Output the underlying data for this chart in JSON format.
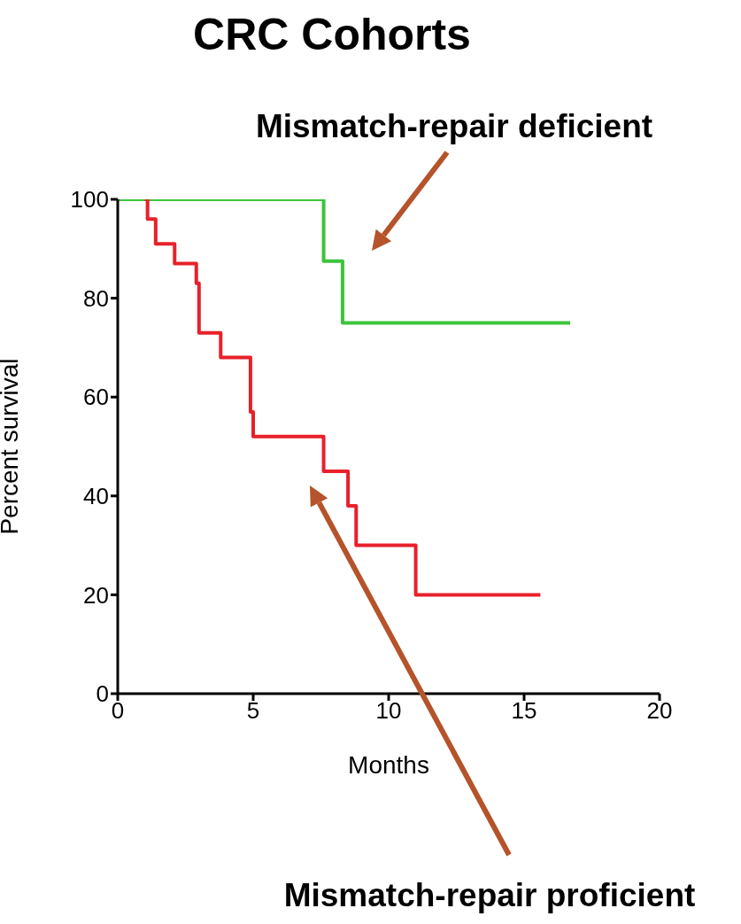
{
  "chart_data": {
    "type": "step",
    "title": "CRC Cohorts",
    "xlabel": "Months",
    "ylabel": "Percent survival",
    "xlim": [
      0,
      20
    ],
    "xticks": [
      0,
      5,
      10,
      15,
      20
    ],
    "ylim": [
      0,
      100
    ],
    "yticks": [
      0,
      20,
      40,
      60,
      80,
      100
    ],
    "series": [
      {
        "name": "Mismatch-repair deficient",
        "color": "#3cc43c",
        "x": [
          0,
          7.6,
          8.3,
          16.7
        ],
        "values": [
          100,
          87.5,
          75,
          75
        ]
      },
      {
        "name": "Mismatch-repair proficient",
        "color": "#e8202a",
        "x": [
          1.0,
          1.1,
          1.4,
          2.1,
          2.9,
          3.0,
          3.8,
          4.9,
          5.0,
          7.6,
          8.5,
          8.8,
          11.0,
          15.6
        ],
        "values": [
          100,
          96,
          91,
          87,
          83,
          73,
          68,
          57,
          52,
          45,
          38,
          30,
          20,
          20
        ]
      }
    ]
  }
}
